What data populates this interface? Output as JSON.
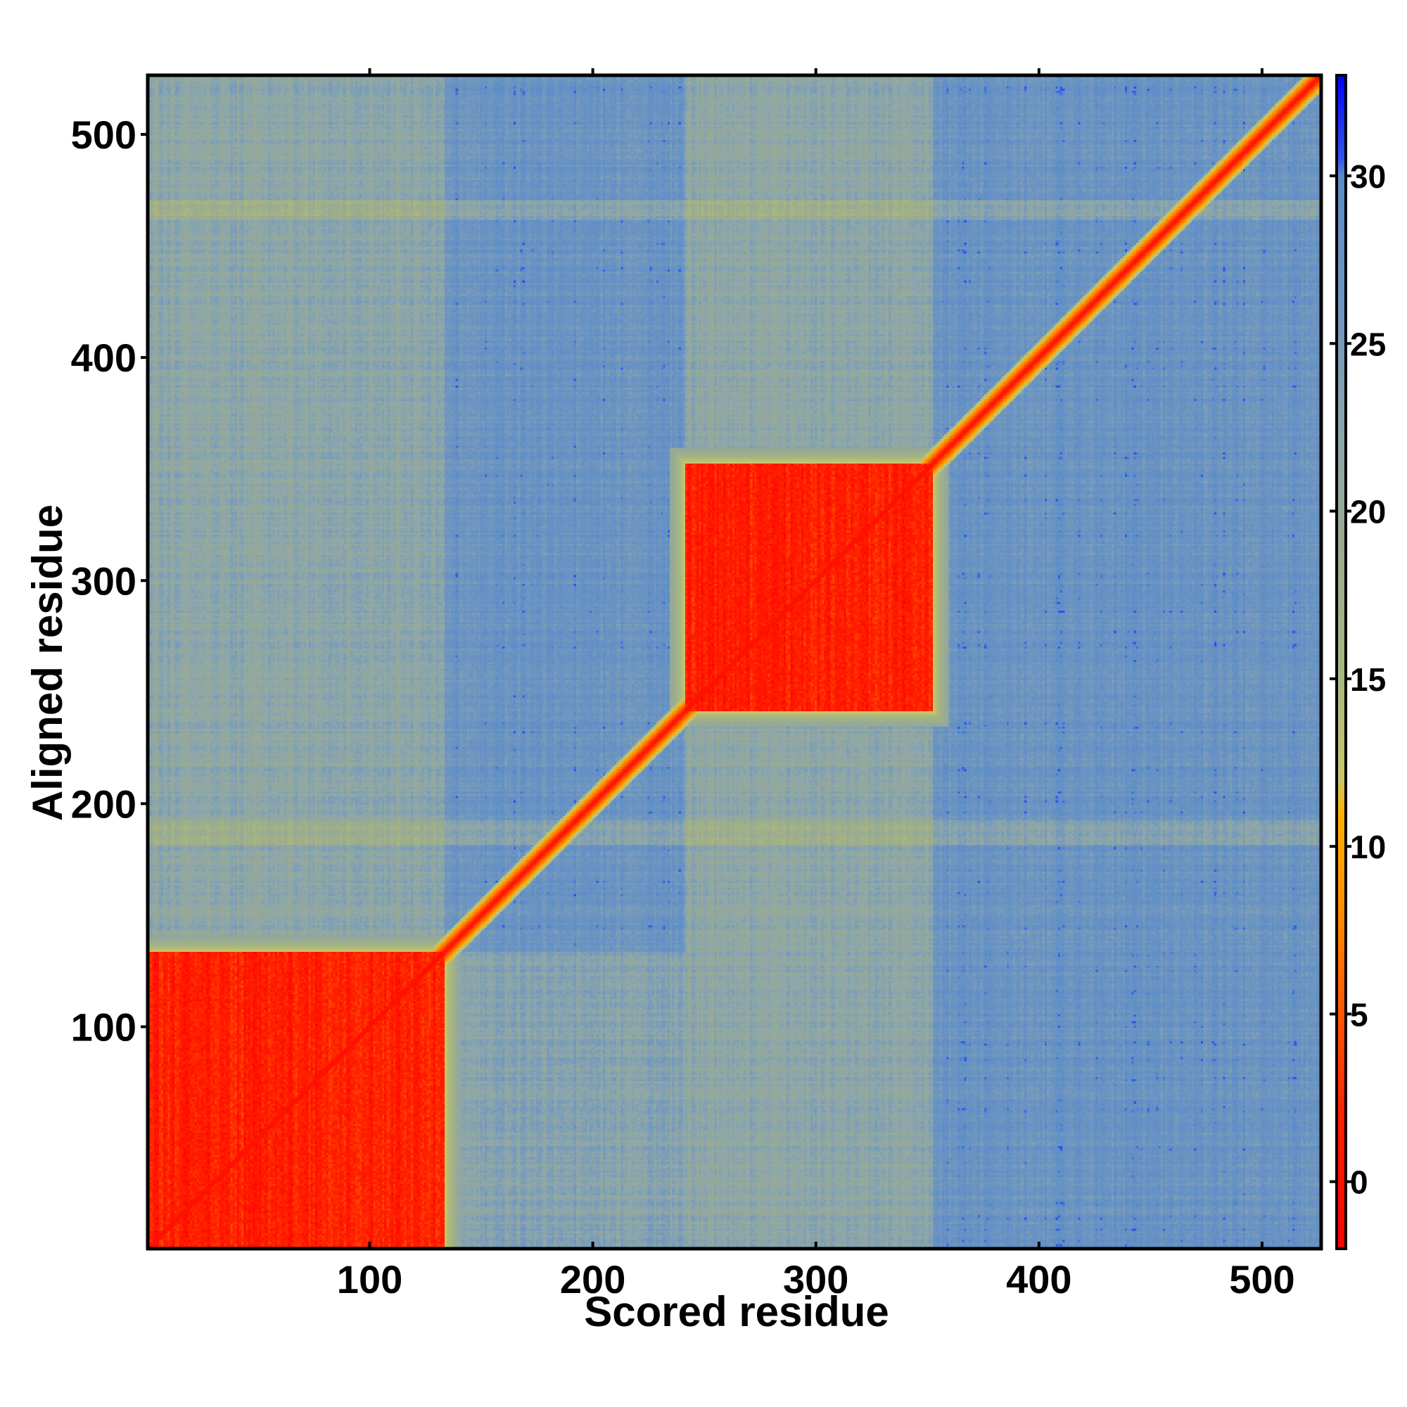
{
  "chart_data": {
    "type": "heatmap",
    "title": "",
    "xlabel": "Scored residue",
    "ylabel": "Aligned residue",
    "xlim": [
      1,
      526
    ],
    "ylim": [
      1,
      526
    ],
    "x_ticks": [
      100,
      200,
      300,
      400,
      500
    ],
    "y_ticks": [
      100,
      200,
      300,
      400,
      500
    ],
    "colorbar": {
      "range": [
        -2,
        33
      ],
      "ticks": [
        0,
        5,
        10,
        15,
        20,
        25,
        30
      ],
      "stops": [
        {
          "value": -2,
          "color": "#ff0000"
        },
        {
          "value": 2,
          "color": "#ff2200"
        },
        {
          "value": 5,
          "color": "#ff5500"
        },
        {
          "value": 8,
          "color": "#ff8c00"
        },
        {
          "value": 11,
          "color": "#ffb300"
        },
        {
          "value": 12,
          "color": "#c9c46a"
        },
        {
          "value": 15,
          "color": "#a8b87e"
        },
        {
          "value": 19,
          "color": "#9aaa90"
        },
        {
          "value": 22,
          "color": "#8ea7a8"
        },
        {
          "value": 26,
          "color": "#6f96c0"
        },
        {
          "value": 30,
          "color": "#5b8cc8"
        },
        {
          "value": 30.5,
          "color": "#3355ee"
        },
        {
          "value": 33,
          "color": "#0000ff"
        }
      ]
    },
    "features": {
      "domains": [
        {
          "start": 1,
          "end": 133,
          "value": 1.5
        },
        {
          "start": 242,
          "end": 352,
          "value": 1.5
        }
      ],
      "diagonal_value": 0,
      "diagonal_halfwidth": 7,
      "background_value": 27,
      "band_value": 16,
      "left_region_value": 22
    }
  }
}
